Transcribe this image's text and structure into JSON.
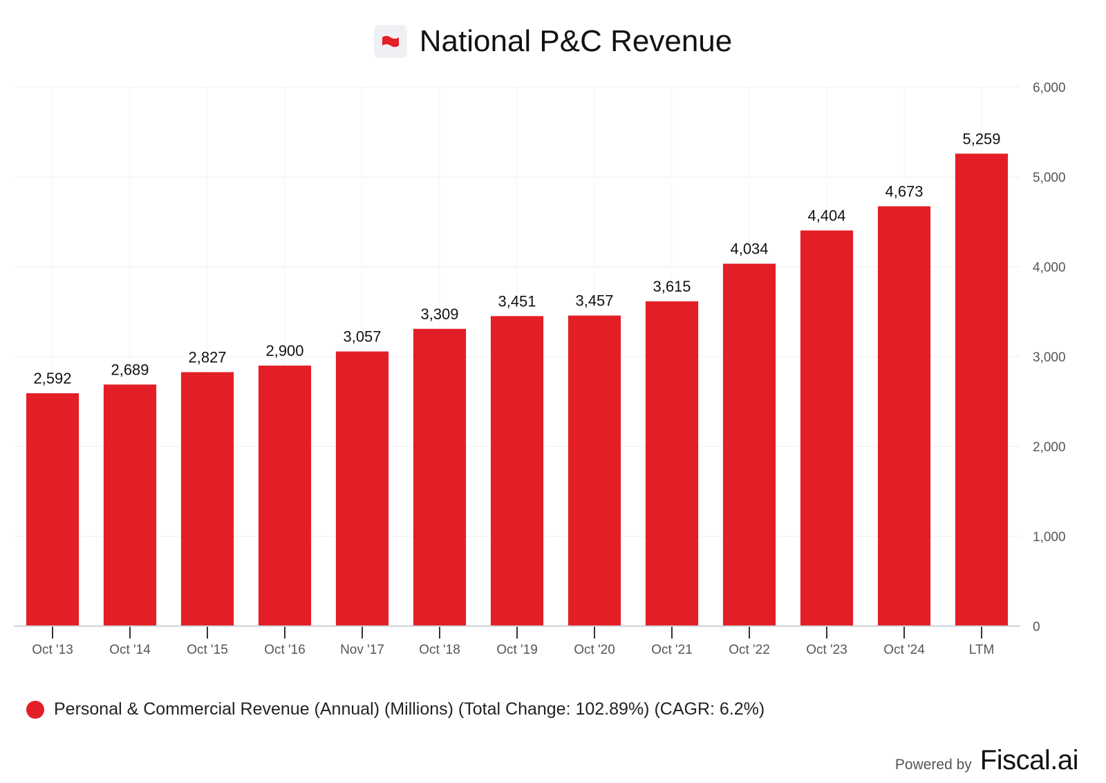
{
  "colors": {
    "bar": "#e41e26",
    "grid": "#eeeeee",
    "axis": "#cfd3da",
    "tick_text": "#555555",
    "label_text": "#111111"
  },
  "header": {
    "logo_icon": "flag-icon"
  },
  "chart_data": {
    "type": "bar",
    "title": "National P&C Revenue",
    "categories": [
      "Oct '13",
      "Oct '14",
      "Oct '15",
      "Oct '16",
      "Nov '17",
      "Oct '18",
      "Oct '19",
      "Oct '20",
      "Oct '21",
      "Oct '22",
      "Oct '23",
      "Oct '24",
      "LTM"
    ],
    "values": [
      2592,
      2689,
      2827,
      2900,
      3057,
      3309,
      3451,
      3457,
      3615,
      4034,
      4404,
      4673,
      5259
    ],
    "value_labels": [
      "2,592",
      "2,689",
      "2,827",
      "2,900",
      "3,057",
      "3,309",
      "3,451",
      "3,457",
      "3,615",
      "4,034",
      "4,404",
      "4,673",
      "5,259"
    ],
    "ylim": [
      0,
      6000
    ],
    "yticks": [
      0,
      1000,
      2000,
      3000,
      4000,
      5000,
      6000
    ],
    "ytick_labels": [
      "0",
      "1,000",
      "2,000",
      "3,000",
      "4,000",
      "5,000",
      "6,000"
    ],
    "y_axis_side": "right",
    "grid": true,
    "xlabel": "",
    "ylabel": "",
    "legend": "Personal & Commercial Revenue (Annual) (Millions) (Total Change: 102.89%) (CAGR: 6.2%)",
    "legend_placement": "bottom-left"
  },
  "footer": {
    "powered_by": "Powered by",
    "brand": "Fiscal.ai"
  }
}
